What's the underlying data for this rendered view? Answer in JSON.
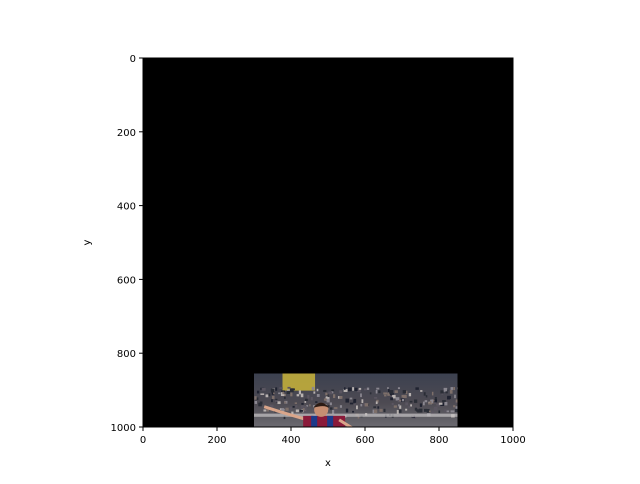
{
  "chart_data": {
    "type": "image",
    "title": "",
    "xlabel": "x",
    "ylabel": "y",
    "xlim": [
      0,
      1000
    ],
    "ylim": [
      1000,
      0
    ],
    "xticks": [
      0,
      200,
      400,
      600,
      800,
      1000
    ],
    "yticks": [
      0,
      200,
      400,
      600,
      800,
      1000
    ],
    "background_color": "#000000",
    "grid": false,
    "legend": "none",
    "image_patch": {
      "x_range": [
        300,
        850
      ],
      "y_range": [
        855,
        1000
      ],
      "description": "photo crop: footballer in red-and-blue striped kit in front of a stadium crowd"
    }
  }
}
